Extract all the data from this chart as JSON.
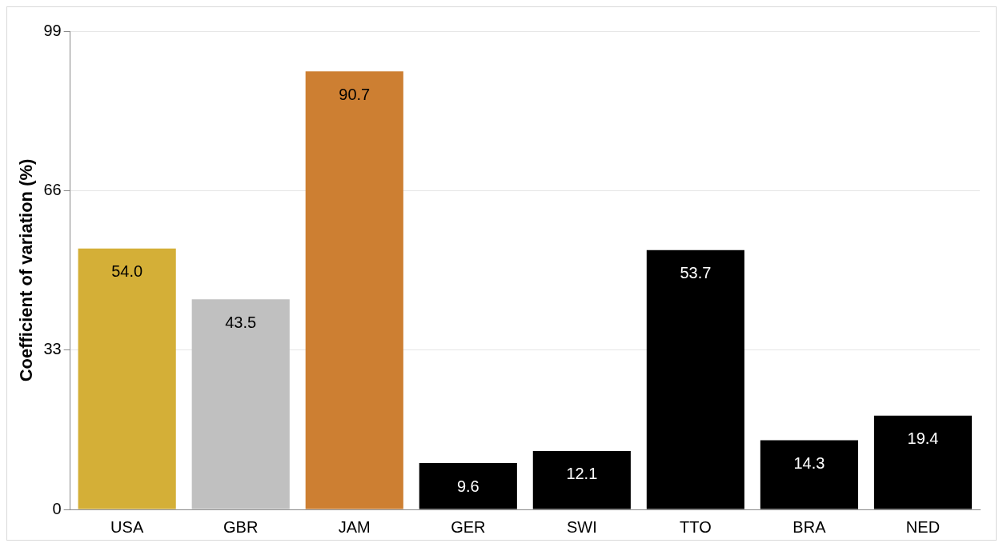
{
  "chart_data": {
    "type": "bar",
    "ylabel": "Coefficient of variation (%)",
    "categories": [
      "USA",
      "GBR",
      "JAM",
      "GER",
      "SWI",
      "TTO",
      "BRA",
      "NED"
    ],
    "values": [
      54.0,
      43.5,
      90.7,
      9.6,
      12.1,
      53.7,
      14.3,
      19.4
    ],
    "colors": [
      "#d4af37",
      "#c0c0c0",
      "#cd7f32",
      "#000000",
      "#000000",
      "#000000",
      "#000000",
      "#000000"
    ],
    "value_labels": [
      "54.0",
      "43.5",
      "90.7",
      "9.6",
      "12.1",
      "53.7",
      "14.3",
      "19.4"
    ],
    "ylim": [
      0,
      99
    ],
    "yticks": [
      0,
      33,
      66,
      99
    ],
    "grid": "y",
    "legend": false
  }
}
